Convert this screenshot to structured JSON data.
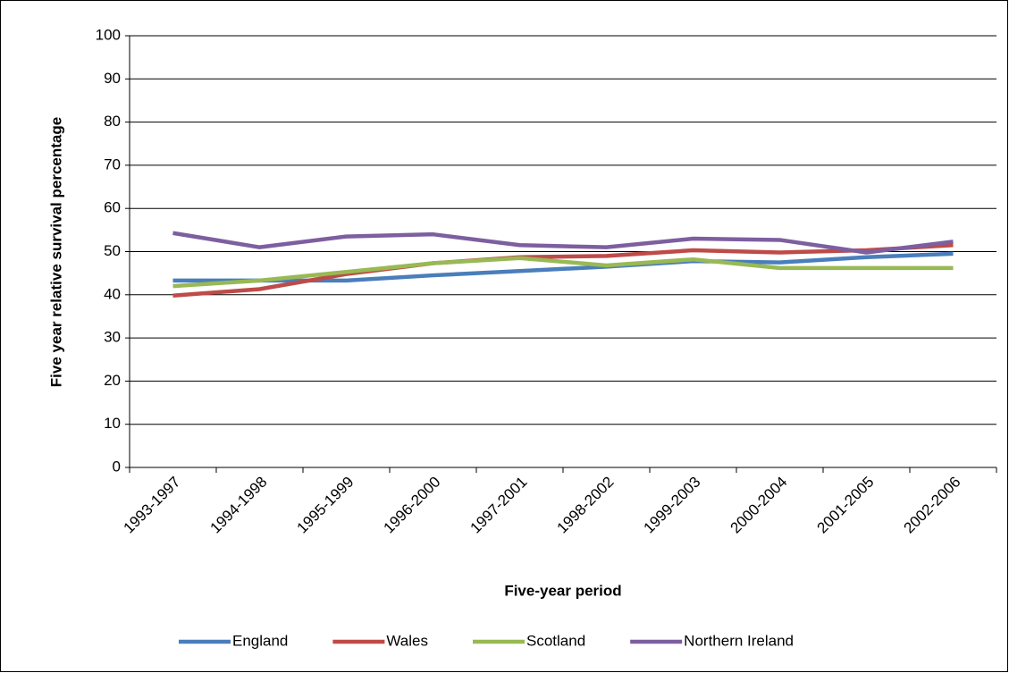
{
  "chart_data": {
    "type": "line",
    "x_label": "Five-year period",
    "y_label": "Five year relative survival percentage",
    "categories": [
      "1993-1997",
      "1994-1998",
      "1995-1999",
      "1996-2000",
      "1997-2001",
      "1998-2002",
      "1999-2003",
      "2000-2004",
      "2001-2005",
      "2002-2006"
    ],
    "series": [
      {
        "name": "England",
        "color": "#4a7ebb",
        "values": [
          43.3,
          43.3,
          43.3,
          44.5,
          45.5,
          46.5,
          47.8,
          47.5,
          48.7,
          49.5
        ]
      },
      {
        "name": "Wales",
        "color": "#be4b48",
        "values": [
          39.8,
          41.3,
          44.8,
          47.3,
          48.7,
          49.0,
          50.3,
          49.8,
          50.3,
          51.5
        ]
      },
      {
        "name": "Scotland",
        "color": "#98b954",
        "values": [
          42.0,
          43.3,
          45.3,
          47.3,
          48.5,
          46.8,
          48.2,
          46.2,
          46.2,
          46.2
        ]
      },
      {
        "name": "Northern Ireland",
        "color": "#7d5fa0",
        "values": [
          54.3,
          51.0,
          53.5,
          54.0,
          51.5,
          51.0,
          53.0,
          52.7,
          49.8,
          52.3
        ]
      }
    ],
    "ylim": [
      0,
      100
    ],
    "yticks": [
      0,
      10,
      20,
      30,
      40,
      50,
      60,
      70,
      80,
      90,
      100
    ],
    "grid": true,
    "legend": "bottom"
  }
}
